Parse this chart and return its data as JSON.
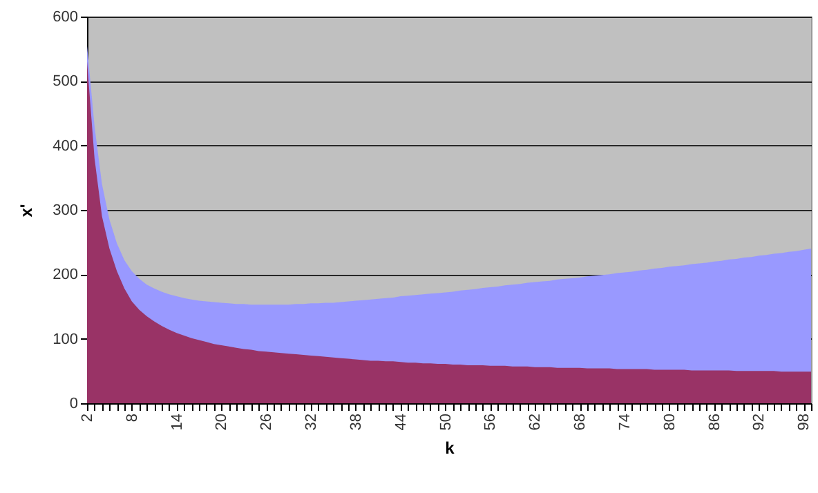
{
  "chart_data": {
    "type": "area",
    "xlabel": "k",
    "ylabel": "x'",
    "categories": [
      "2",
      null,
      null,
      null,
      null,
      null,
      "8",
      null,
      null,
      null,
      null,
      null,
      "14",
      null,
      null,
      null,
      null,
      null,
      "20",
      null,
      null,
      null,
      null,
      null,
      "26",
      null,
      null,
      null,
      null,
      null,
      "32",
      null,
      null,
      null,
      null,
      null,
      "38",
      null,
      null,
      null,
      null,
      null,
      "44",
      null,
      null,
      null,
      null,
      null,
      "50",
      null,
      null,
      null,
      null,
      null,
      "56",
      null,
      null,
      null,
      null,
      null,
      "62",
      null,
      null,
      null,
      null,
      null,
      "68",
      null,
      null,
      null,
      null,
      null,
      "74",
      null,
      null,
      null,
      null,
      null,
      "80",
      null,
      null,
      null,
      null,
      null,
      "86",
      null,
      null,
      null,
      null,
      null,
      "92",
      null,
      null,
      null,
      null,
      null,
      "98",
      null
    ],
    "series": [
      {
        "color": "#9999ff",
        "values": [
          555,
          430,
          340,
          285,
          248,
          222,
          205,
          193,
          184,
          178,
          173,
          169,
          166,
          163,
          161,
          159,
          158,
          157,
          156,
          155,
          154,
          154,
          153,
          153,
          153,
          153,
          153,
          153,
          154,
          154,
          155,
          155,
          156,
          156,
          157,
          158,
          159,
          160,
          161,
          162,
          163,
          164,
          166,
          167,
          168,
          169,
          170,
          171,
          172,
          173,
          175,
          176,
          177,
          179,
          180,
          181,
          183,
          184,
          185,
          187,
          188,
          189,
          190,
          192,
          193,
          194,
          195,
          197,
          198,
          199,
          200,
          202,
          203,
          204,
          206,
          207,
          209,
          210,
          212,
          213,
          214,
          216,
          217,
          218,
          220,
          221,
          223,
          224,
          226,
          227,
          229,
          230,
          232,
          233,
          235,
          236,
          238,
          240
        ]
      },
      {
        "color": "#993366",
        "values": [
          530,
          380,
          290,
          240,
          205,
          178,
          158,
          145,
          135,
          127,
          120,
          114,
          109,
          105,
          101,
          98,
          95,
          92,
          90,
          88,
          86,
          84,
          83,
          81,
          80,
          79,
          78,
          77,
          76,
          75,
          74,
          73,
          72,
          71,
          70,
          69,
          68,
          67,
          66,
          66,
          65,
          65,
          64,
          63,
          63,
          62,
          62,
          61,
          61,
          60,
          60,
          59,
          59,
          59,
          58,
          58,
          58,
          57,
          57,
          57,
          56,
          56,
          56,
          55,
          55,
          55,
          55,
          54,
          54,
          54,
          54,
          53,
          53,
          53,
          53,
          53,
          52,
          52,
          52,
          52,
          52,
          51,
          51,
          51,
          51,
          51,
          51,
          50,
          50,
          50,
          50,
          50,
          50,
          49,
          49,
          49,
          49,
          49
        ]
      }
    ],
    "ylim": [
      0,
      600
    ],
    "yticks": [
      0,
      100,
      200,
      300,
      400,
      500,
      600
    ],
    "grid": "y"
  }
}
